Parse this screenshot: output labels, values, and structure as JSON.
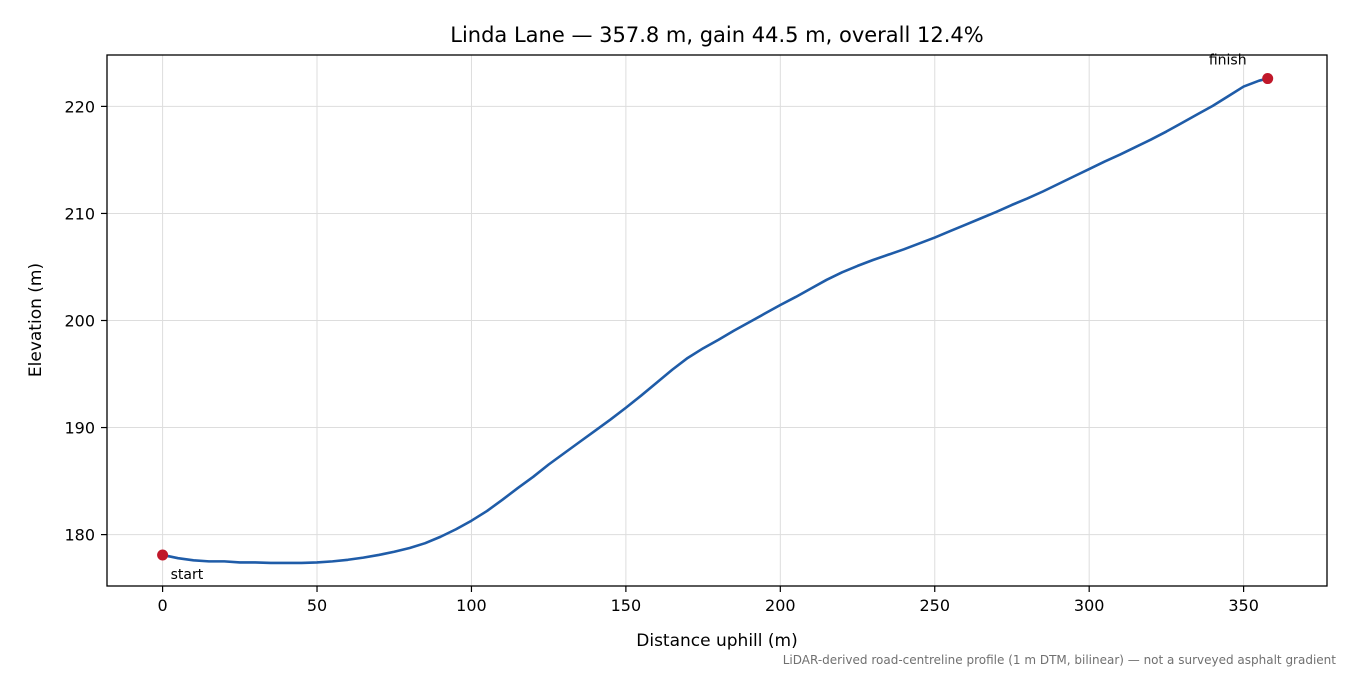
{
  "chart_data": {
    "type": "line",
    "title": "Linda Lane — 357.8 m, gain 44.5 m, overall 12.4%",
    "xlabel": "Distance uphill (m)",
    "ylabel": "Elevation (m)",
    "xlim": [
      -18,
      377
    ],
    "ylim": [
      175.2,
      224.8
    ],
    "xticks": [
      0,
      50,
      100,
      150,
      200,
      250,
      300,
      350
    ],
    "yticks": [
      180,
      190,
      200,
      210,
      220
    ],
    "grid": true,
    "line_color": "#1f5ca8",
    "marker_color": "#c0182a",
    "series": [
      {
        "x": [
          0,
          5,
          10,
          15,
          20,
          25,
          30,
          35,
          40,
          45,
          50,
          55,
          60,
          65,
          70,
          75,
          80,
          85,
          90,
          95,
          100,
          105,
          110,
          115,
          120,
          125,
          130,
          135,
          140,
          145,
          150,
          155,
          160,
          165,
          170,
          175,
          180,
          185,
          190,
          195,
          200,
          205,
          210,
          215,
          220,
          225,
          230,
          235,
          240,
          245,
          250,
          255,
          260,
          265,
          270,
          275,
          280,
          285,
          290,
          295,
          300,
          305,
          310,
          315,
          320,
          325,
          330,
          335,
          340,
          345,
          350,
          355,
          357.8
        ],
        "y": [
          178.1,
          177.8,
          177.6,
          177.5,
          177.5,
          177.4,
          177.4,
          177.35,
          177.35,
          177.35,
          177.4,
          177.5,
          177.65,
          177.85,
          178.1,
          178.4,
          178.75,
          179.2,
          179.8,
          180.5,
          181.3,
          182.2,
          183.25,
          184.35,
          185.4,
          186.55,
          187.6,
          188.65,
          189.7,
          190.75,
          191.85,
          193.0,
          194.2,
          195.4,
          196.5,
          197.4,
          198.2,
          199.05,
          199.85,
          200.65,
          201.45,
          202.2,
          203.0,
          203.8,
          204.5,
          205.1,
          205.65,
          206.15,
          206.65,
          207.2,
          207.75,
          208.35,
          208.95,
          209.55,
          210.15,
          210.8,
          211.4,
          212.05,
          212.75,
          213.45,
          214.15,
          214.85,
          215.5,
          216.2,
          216.9,
          217.65,
          218.45,
          219.25,
          220.05,
          220.95,
          221.85,
          222.4,
          222.6
        ]
      }
    ],
    "annotations": [
      {
        "text": "start",
        "x": 0,
        "y": 178.1
      },
      {
        "text": "finish",
        "x": 357.8,
        "y": 222.6
      }
    ],
    "footnote": "LiDAR-derived road-centreline profile (1 m DTM, bilinear) — not a surveyed asphalt gradient"
  }
}
